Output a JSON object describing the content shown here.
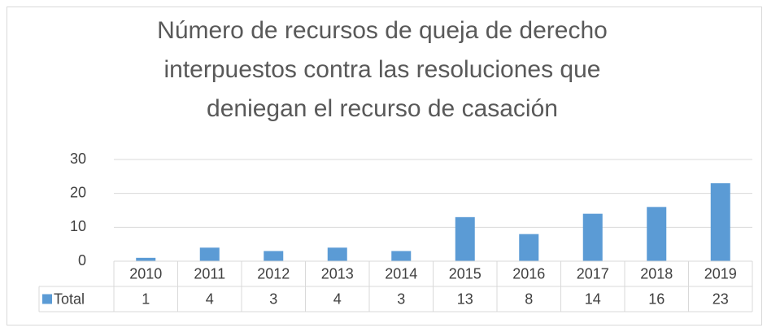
{
  "chart_data": {
    "type": "bar",
    "title": "Número de recursos de queja de derecho interpuestos contra las resoluciones que deniegan el recurso de casación",
    "categories": [
      "2010",
      "2011",
      "2012",
      "2013",
      "2014",
      "2015",
      "2016",
      "2017",
      "2018",
      "2019"
    ],
    "series": [
      {
        "name": "Total",
        "color": "#5b9bd5",
        "values": [
          1,
          4,
          3,
          4,
          3,
          13,
          8,
          14,
          16,
          23
        ]
      }
    ],
    "ylim": [
      0,
      30
    ],
    "yticks": [
      0,
      10,
      20,
      30
    ],
    "grid": true,
    "data_table": true
  }
}
